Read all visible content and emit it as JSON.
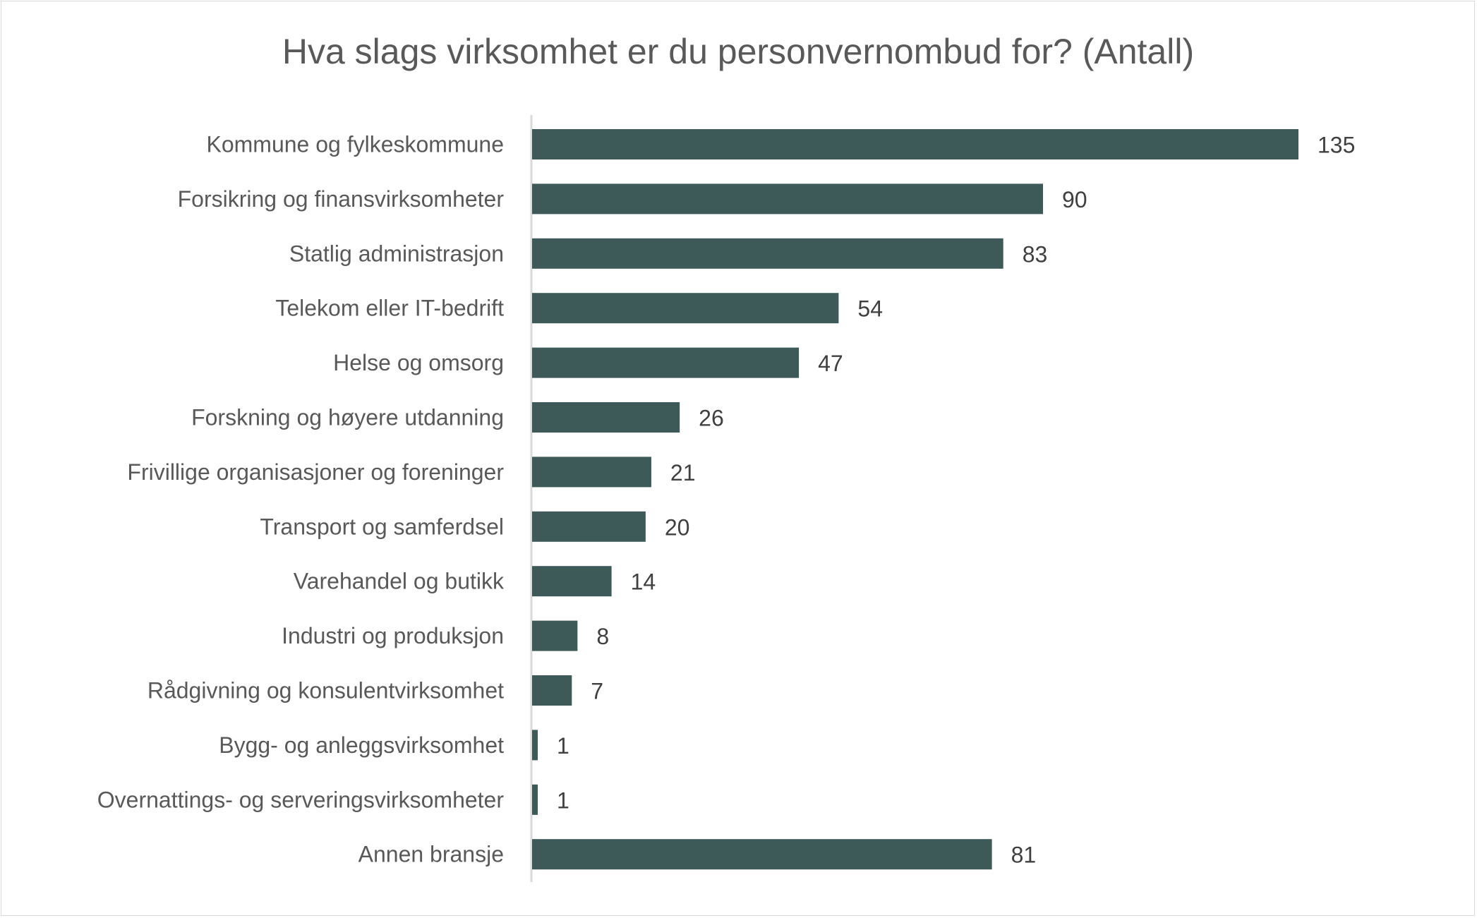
{
  "chart_data": {
    "type": "bar",
    "orientation": "horizontal",
    "title": "Hva slags virksomhet er du personvernombud for? (Antall)",
    "categories": [
      "Kommune og fylkeskommune",
      "Forsikring og finansvirksomheter",
      "Statlig administrasjon",
      "Telekom eller IT-bedrift",
      "Helse og omsorg",
      "Forskning og høyere utdanning",
      "Frivillige organisasjoner og foreninger",
      "Transport og samferdsel",
      "Varehandel og butikk",
      "Industri og produksjon",
      "Rådgivning og konsulentvirksomhet",
      "Bygg- og anleggsvirksomhet",
      "Overnattings- og serveringsvirksomheter",
      "Annen bransje"
    ],
    "values": [
      135,
      90,
      83,
      54,
      47,
      26,
      21,
      20,
      14,
      8,
      7,
      1,
      1,
      81
    ],
    "xlim": [
      0,
      135
    ],
    "grid": false,
    "legend": "none",
    "data_labels": true,
    "bar_color": "#3d5a58"
  }
}
